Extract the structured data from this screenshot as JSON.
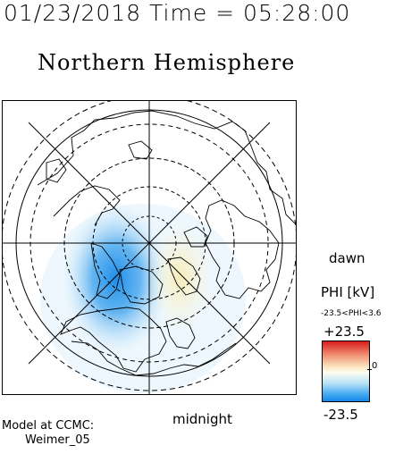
{
  "header": {
    "timestamp": "01/23/2018 Time = 05:28:00",
    "hemisphere": "Northern Hemisphere"
  },
  "map": {
    "local_time_labels": {
      "dawn": "dawn",
      "midnight": "midnight"
    }
  },
  "colorbar": {
    "title": "PHI [kV]",
    "range_text": "-23.5<PHI<3.6",
    "max_label": "+23.5",
    "zero_label": "0",
    "min_label": "-23.5",
    "colors": {
      "positive": "#d81c1c",
      "neutral": "#fdfdf0",
      "negative": "#1688ea"
    }
  },
  "footer": {
    "model_label": "Model at CCMC:",
    "model_name": "Weimer_05"
  }
}
